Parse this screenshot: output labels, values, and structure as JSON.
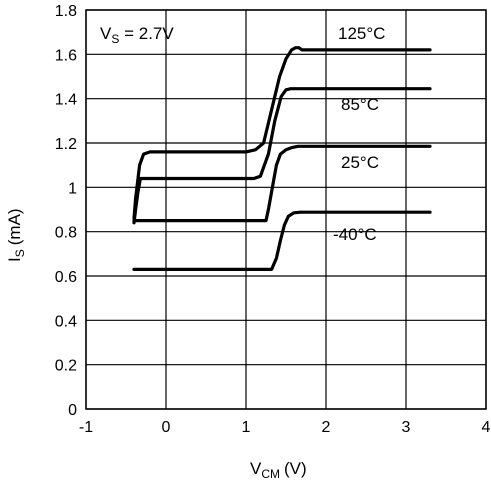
{
  "chart_data": {
    "type": "line",
    "xlabel": "V",
    "xlabel_sub": "CM",
    "xlabel_unit": "(V)",
    "ylabel": "I",
    "ylabel_sub": "S",
    "ylabel_unit": "(mA)",
    "xlim": [
      -1,
      4
    ],
    "ylim": [
      0,
      1.8
    ],
    "x_ticks": [
      "-1",
      "0",
      "1",
      "2",
      "3",
      "4"
    ],
    "y_ticks": [
      "0",
      "0.2",
      "0.4",
      "0.6",
      "0.8",
      "1",
      "1.2",
      "1.4",
      "1.6",
      "1.8"
    ],
    "grid": true,
    "annotation": {
      "prefix": "V",
      "sub": "S",
      "suffix": " = 2.7V"
    },
    "series": [
      {
        "name": "125°C",
        "x": [
          -0.4,
          -0.38,
          -0.33,
          -0.28,
          -0.2,
          1.0,
          1.12,
          1.22,
          1.32,
          1.42,
          1.5,
          1.57,
          1.62,
          1.66,
          1.7,
          1.8,
          3.3
        ],
        "y": [
          0.86,
          0.95,
          1.1,
          1.15,
          1.16,
          1.16,
          1.17,
          1.2,
          1.35,
          1.5,
          1.58,
          1.62,
          1.63,
          1.63,
          1.62,
          1.62,
          1.62
        ]
      },
      {
        "name": "85°C",
        "x": [
          -0.4,
          -0.38,
          -0.35,
          -0.32,
          1.1,
          1.18,
          1.28,
          1.36,
          1.44,
          1.5,
          1.56,
          3.3
        ],
        "y": [
          0.84,
          0.9,
          0.98,
          1.04,
          1.04,
          1.05,
          1.15,
          1.3,
          1.41,
          1.44,
          1.445,
          1.445
        ]
      },
      {
        "name": "25°C",
        "x": [
          -0.4,
          1.25,
          1.28,
          1.33,
          1.38,
          1.43,
          1.5,
          1.58,
          1.65,
          3.3
        ],
        "y": [
          0.85,
          0.85,
          0.9,
          1.0,
          1.1,
          1.15,
          1.17,
          1.18,
          1.185,
          1.185
        ]
      },
      {
        "name": "-40°C",
        "x": [
          -0.4,
          1.32,
          1.38,
          1.43,
          1.48,
          1.53,
          1.6,
          1.68,
          3.3
        ],
        "y": [
          0.63,
          0.63,
          0.68,
          0.76,
          0.83,
          0.87,
          0.885,
          0.888,
          0.888
        ]
      }
    ]
  }
}
